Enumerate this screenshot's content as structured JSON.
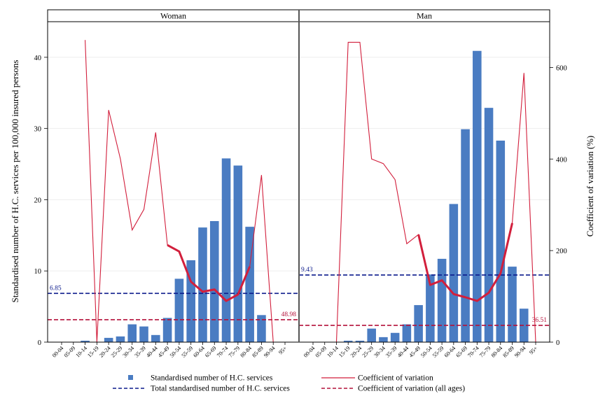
{
  "chart_data": {
    "type": "bar",
    "ylabel_left": "Standardised number of H.C. services per 100,000 insured persons",
    "ylabel_right": "Coefficient of variation (%)",
    "ylim_left": [
      0,
      45
    ],
    "ylim_right": [
      0,
      700
    ],
    "yticks_left": [
      0,
      10,
      20,
      30,
      40
    ],
    "yticks_right": [
      0,
      200,
      400,
      600
    ],
    "grid": "horizontal-light",
    "categories": [
      "00-04",
      "05-09",
      "10-14",
      "15-19",
      "20-24",
      "25-29",
      "30-34",
      "35-39",
      "40-44",
      "45-49",
      "50-54",
      "55-59",
      "60-64",
      "65-69",
      "70-74",
      "75-79",
      "80-84",
      "85-89",
      "90-94",
      "95+"
    ],
    "x_tick_labels": [
      "00-04",
      "05-09",
      "10-14",
      "15-19",
      "20-24",
      "25-29",
      "30-34",
      "35-39",
      "40-44",
      "45-49",
      "50-54",
      "55-59",
      "60-64",
      "65-69",
      "70-74",
      "75-79",
      "80-84",
      "85-89",
      "90-94",
      "95+"
    ],
    "panels": [
      {
        "title": "Woman",
        "bars": [
          0,
          0,
          0.2,
          0,
          0.6,
          0.8,
          2.5,
          2.2,
          1.0,
          3.4,
          8.9,
          11.5,
          16.1,
          17.0,
          25.8,
          24.8,
          16.2,
          3.8,
          0,
          0
        ],
        "cv": [
          null,
          null,
          660,
          0,
          507,
          400,
          245,
          290,
          458,
          212,
          198,
          132,
          110,
          115,
          90,
          104,
          165,
          365,
          0,
          null
        ],
        "cv_bold_range": [
          9,
          16
        ],
        "total_ref": 6.85,
        "total_ref_label": "6.85",
        "cv_all_ref": 48.98,
        "cv_all_ref_label": "48.98"
      },
      {
        "title": "Man",
        "bars": [
          0,
          0,
          0,
          0.2,
          0.2,
          1.9,
          0.7,
          1.3,
          2.5,
          5.2,
          9.5,
          11.7,
          19.4,
          29.9,
          40.9,
          32.9,
          28.3,
          10.6,
          4.7,
          0
        ],
        "cv": [
          null,
          null,
          0,
          655,
          655,
          400,
          390,
          355,
          215,
          235,
          125,
          135,
          105,
          98,
          90,
          108,
          150,
          260,
          588,
          0
        ],
        "cv_bold_range": [
          9,
          17
        ],
        "total_ref": 9.43,
        "total_ref_label": "9.43",
        "cv_all_ref": 36.51,
        "cv_all_ref_label": "36.51"
      }
    ],
    "legend": {
      "placement": "bottom",
      "items": [
        {
          "label": "Standardised number of H.C. services",
          "kind": "bar"
        },
        {
          "label": "Coefficient of variation",
          "kind": "line"
        },
        {
          "label": "Total standardised number of H.C. services",
          "kind": "dash-blue"
        },
        {
          "label": "Coefficient of variation (all ages)",
          "kind": "dash-red"
        }
      ]
    }
  },
  "colors": {
    "bar": "#4a7cc2",
    "cv_line": "#d21f3c",
    "total_ref": "#0b1a8c",
    "cv_ref": "#b4113a",
    "grid": "#eeeeee"
  }
}
